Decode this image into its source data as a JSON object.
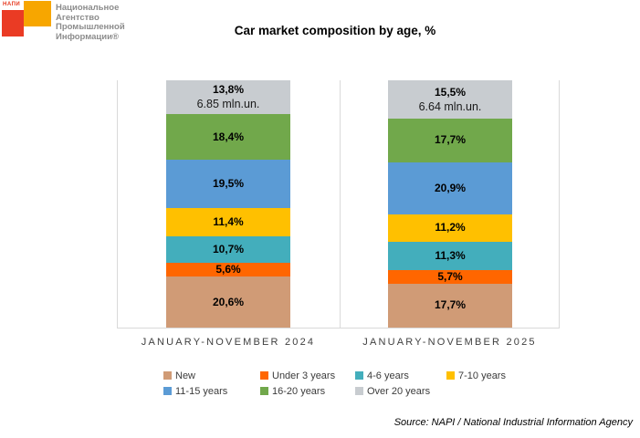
{
  "logo": {
    "wordmark": "НАПИ",
    "org_lines": [
      "Национальное",
      "Агентство",
      "Промышленной",
      "Информации®"
    ],
    "red": "#ea3b24",
    "orange": "#f7a600"
  },
  "title": "Car market composition by age, %",
  "source": "Source: NAPI / National Industrial Information Agency",
  "chart_data": {
    "type": "bar",
    "stacked": true,
    "units": "%",
    "title": "Car market composition by age, %",
    "categories": [
      "JANUARY-NOVEMBER 2024",
      "JANUARY-NOVEMBER 2025"
    ],
    "category_totals": [
      "6.85 mln.un.",
      "6.64 mln.un."
    ],
    "ylim": [
      0,
      100
    ],
    "grid": false,
    "legend_position": "bottom",
    "panel_border_color": "#d9d9d9",
    "series": [
      {
        "name": "New",
        "color": "#d09b76",
        "values": [
          20.6,
          17.7
        ],
        "labels": [
          "20,6%",
          "17,7%"
        ]
      },
      {
        "name": "Under 3 years",
        "color": "#ff6600",
        "values": [
          5.6,
          5.7
        ],
        "labels": [
          "5,6%",
          "5,7%"
        ]
      },
      {
        "name": "4-6 years",
        "color": "#43aebc",
        "values": [
          10.7,
          11.3
        ],
        "labels": [
          "10,7%",
          "11,3%"
        ]
      },
      {
        "name": "7-10 years",
        "color": "#ffc000",
        "values": [
          11.4,
          11.2
        ],
        "labels": [
          "11,4%",
          "11,2%"
        ]
      },
      {
        "name": "11-15 years",
        "color": "#5b9bd5",
        "values": [
          19.5,
          20.9
        ],
        "labels": [
          "19,5%",
          "20,9%"
        ]
      },
      {
        "name": "16-20 years",
        "color": "#71a84b",
        "values": [
          18.4,
          17.7
        ],
        "labels": [
          "18,4%",
          "17,7%"
        ]
      },
      {
        "name": "Over 20 years",
        "color": "#c8ccd0",
        "values": [
          13.8,
          15.5
        ],
        "labels": [
          "13,8%",
          "15,5%"
        ],
        "show_total": true
      }
    ]
  }
}
